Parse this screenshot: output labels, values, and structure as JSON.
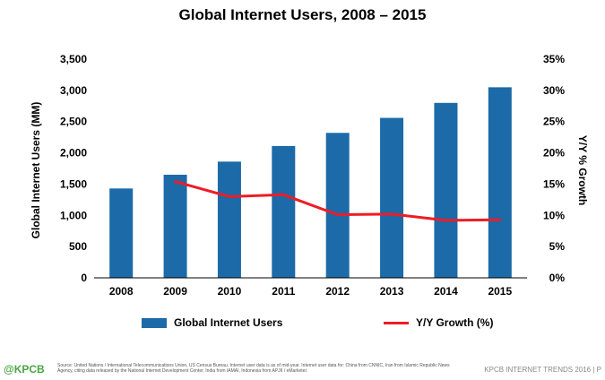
{
  "chart_data": {
    "type": "bar",
    "title": "Global Internet Users, 2008 – 2015",
    "categories": [
      "2008",
      "2009",
      "2010",
      "2011",
      "2012",
      "2013",
      "2014",
      "2015"
    ],
    "series": [
      {
        "name": "Global Internet Users",
        "type": "bar",
        "axis": "left",
        "values": [
          1430,
          1650,
          1860,
          2110,
          2320,
          2560,
          2800,
          3050
        ]
      },
      {
        "name": "Y/Y Growth (%)",
        "type": "line",
        "axis": "right",
        "values": [
          null,
          15.4,
          13.0,
          13.3,
          10.1,
          10.2,
          9.2,
          9.3
        ]
      }
    ],
    "ylabel": "Global Internet Users (MM)",
    "y2label": "Y/Y % Growth",
    "ylim": [
      0,
      3500
    ],
    "y2lim": [
      0,
      35
    ],
    "yticks": [
      "0",
      "500",
      "1,000",
      "1,500",
      "2,000",
      "2,500",
      "3,000",
      "3,500"
    ],
    "y2ticks": [
      "0%",
      "5%",
      "10%",
      "15%",
      "20%",
      "25%",
      "30%",
      "35%"
    ],
    "grid": false,
    "legend": "bottom",
    "colors": {
      "bar": "#1c6aa8",
      "line": "#ee1c25"
    }
  },
  "footer": {
    "logo": "@KPCB",
    "source": "Source: United Nations / International Telecommunications Union, US Census Bureau. Internet user data is as of mid-year. Internet user data for: China from CNNIC, Iran from Islamic Republic News Agency, citing data released by the National Internet Development Center, India from IAMAI, Indonesia from APJII / eMarketer.",
    "brand": "KPCB INTERNET TRENDS 2016 | P"
  }
}
